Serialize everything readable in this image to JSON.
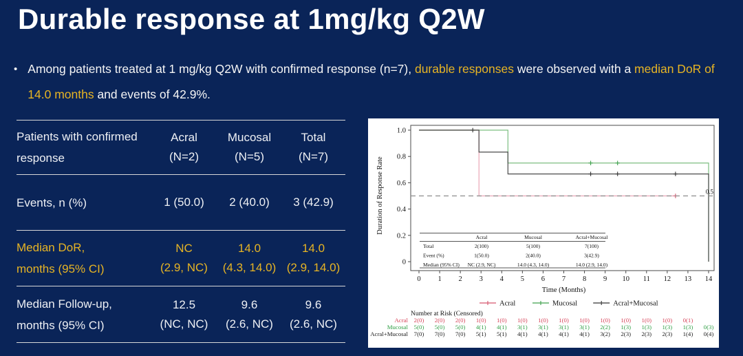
{
  "colors": {
    "background": "#0a2458",
    "accent_yellow": "#e7b424",
    "rule_gray": "#d8d8d8",
    "panel_white": "#ffffff"
  },
  "slide": {
    "title": "Durable response at 1mg/kg Q2W",
    "bullet": {
      "marker": "•",
      "segments": [
        {
          "text": "Among patients treated at 1 mg/kg Q2W with confirmed response (n=7), ",
          "accent": false
        },
        {
          "text": "durable responses",
          "accent": true
        },
        {
          "text": " were observed with a ",
          "accent": false
        },
        {
          "text": "median DoR of 14.0 months",
          "accent": true
        },
        {
          "text": " and events of 42.9%.",
          "accent": false
        }
      ]
    }
  },
  "table": {
    "header": {
      "label_lines": [
        "Patients with confirmed",
        "response"
      ],
      "columns": [
        [
          "Acral",
          "(N=2)"
        ],
        [
          "Mucosal",
          "(N=5)"
        ],
        [
          "Total",
          "(N=7)"
        ]
      ]
    },
    "rows": [
      {
        "label_lines": [
          "Events, n (%)"
        ],
        "cells": [
          [
            "1 (50.0)"
          ],
          [
            "2 (40.0)"
          ],
          [
            "3 (42.9)"
          ]
        ],
        "accent": false
      },
      {
        "label_lines": [
          "Median DoR,",
          "months (95% CI)"
        ],
        "cells": [
          [
            "NC",
            "(2.9, NC)"
          ],
          [
            "14.0",
            "(4.3, 14.0)"
          ],
          [
            "14.0",
            "(2.9, 14.0)"
          ]
        ],
        "accent": true
      },
      {
        "label_lines": [
          "Median Follow-up,",
          "months (95% CI)"
        ],
        "cells": [
          [
            "12.5",
            "(NC, NC)"
          ],
          [
            "9.6",
            "(2.6, NC)"
          ],
          [
            "9.6",
            "(2.6, NC)"
          ]
        ],
        "accent": false
      }
    ]
  },
  "chart_data": {
    "type": "line",
    "subtype": "kaplan-meier-step",
    "xlabel": "Time (Months)",
    "ylabel": "Duration of Response Rate",
    "xlim": [
      0,
      14
    ],
    "ylim": [
      0,
      1
    ],
    "xticks": [
      0,
      1,
      2,
      3,
      4,
      5,
      6,
      7,
      8,
      9,
      10,
      11,
      12,
      13,
      14
    ],
    "yticks": [
      0,
      0.2,
      0.4,
      0.6,
      0.8,
      1.0
    ],
    "ytick_labels": [
      "0",
      "0.2",
      "0.4",
      "0.6",
      "0.8",
      "1.0"
    ],
    "grid": false,
    "reference_line": {
      "y": 0.5,
      "label": "0.5",
      "style": "dashed"
    },
    "series": [
      {
        "name": "Acral",
        "line_color": "#eba6b6",
        "color": "#d5546c",
        "text_color": "#d64258",
        "steps": [
          [
            0,
            1
          ],
          [
            2.9,
            1
          ],
          [
            2.9,
            0.5
          ],
          [
            12.5,
            0.5
          ]
        ],
        "censors": [
          [
            12.4,
            0.5
          ]
        ]
      },
      {
        "name": "Mucosal",
        "line_color": "#7cbf80",
        "color": "#3da04b",
        "text_color": "#2f9e44",
        "steps": [
          [
            0,
            1
          ],
          [
            4.3,
            1
          ],
          [
            4.3,
            0.75
          ],
          [
            14,
            0.75
          ],
          [
            14,
            0
          ]
        ],
        "censors": [
          [
            8.3,
            0.75
          ],
          [
            9.6,
            0.75
          ]
        ]
      },
      {
        "name": "Acral+Mucosal",
        "line_color": "#4a4a4a",
        "color": "#333333",
        "text_color": "#1a1a1a",
        "steps": [
          [
            0,
            1
          ],
          [
            2.9,
            1
          ],
          [
            2.9,
            0.833
          ],
          [
            4.3,
            0.833
          ],
          [
            4.3,
            0.667
          ],
          [
            14,
            0.667
          ],
          [
            14,
            0
          ]
        ],
        "censors": [
          [
            2.6,
            1
          ],
          [
            8.3,
            0.667
          ],
          [
            9.6,
            0.667
          ],
          [
            12.4,
            0.667
          ]
        ]
      }
    ],
    "legend": {
      "position": "bottom",
      "entries": [
        "Acral",
        "Mucosal",
        "Acral+Mucosal"
      ]
    },
    "inset_table": {
      "columns": [
        "Acral",
        "Mucosal",
        "Acral+Mucosal"
      ],
      "rows": [
        {
          "label": "Total",
          "values": [
            "2(100)",
            "5(100)",
            "7(100)"
          ]
        },
        {
          "label": "Event (%)",
          "values": [
            "1(50.0)",
            "2(40.0)",
            "3(42.9)"
          ]
        },
        {
          "label": "Median (95% CI)",
          "values": [
            "NC (2.9, NC)",
            "14.0 (4.3, 14.0)",
            "14.0 (2.9, 14.0)"
          ]
        }
      ]
    },
    "risk_table": {
      "title": "Number at Risk (Censored)",
      "rows": [
        {
          "name": "Acral",
          "values": [
            "2(0)",
            "2(0)",
            "2(0)",
            "1(0)",
            "1(0)",
            "1(0)",
            "1(0)",
            "1(0)",
            "1(0)",
            "1(0)",
            "1(0)",
            "1(0)",
            "1(0)",
            "0(1)"
          ]
        },
        {
          "name": "Mucosal",
          "values": [
            "5(0)",
            "5(0)",
            "5(0)",
            "4(1)",
            "4(1)",
            "3(1)",
            "3(1)",
            "3(1)",
            "3(1)",
            "2(2)",
            "1(3)",
            "1(3)",
            "1(3)",
            "1(3)",
            "0(3)"
          ]
        },
        {
          "name": "Acral+Mucosal",
          "values": [
            "7(0)",
            "7(0)",
            "7(0)",
            "5(1)",
            "5(1)",
            "4(1)",
            "4(1)",
            "4(1)",
            "4(1)",
            "3(2)",
            "2(3)",
            "2(3)",
            "2(3)",
            "1(4)",
            "0(4)"
          ]
        }
      ]
    }
  }
}
